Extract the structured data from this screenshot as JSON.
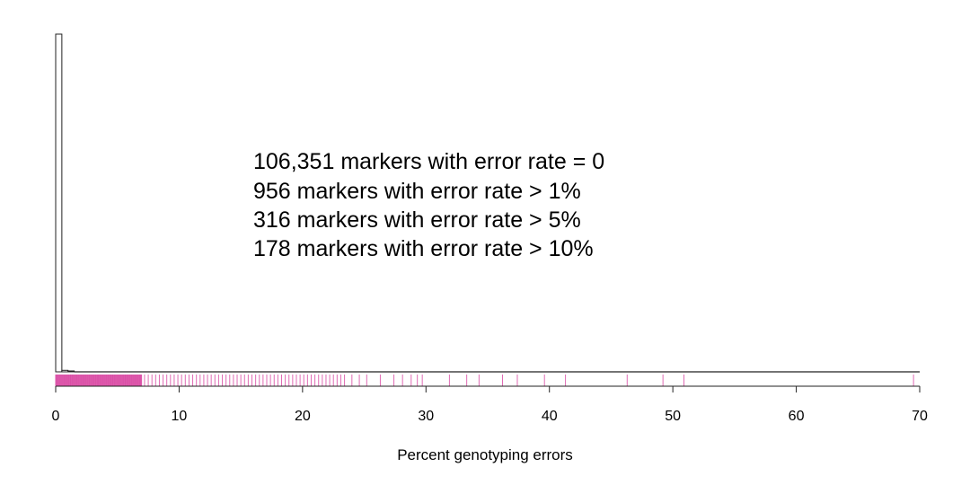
{
  "chart_data": {
    "type": "histogram",
    "xlabel": "Percent genotyping errors",
    "xlim": [
      0,
      70
    ],
    "x_ticks": [
      0,
      10,
      20,
      30,
      40,
      50,
      60,
      70
    ],
    "x_tick_labels": [
      "0",
      "10",
      "20",
      "30",
      "40",
      "50",
      "60",
      "70"
    ],
    "bin_width": 0.5,
    "histogram": {
      "bin_starts": [
        0.0,
        0.5,
        1.0
      ],
      "counts": [
        106351,
        480,
        150
      ],
      "note_tail_bins": "remaining bins to 69.5 have very small counts (near zero)"
    },
    "annotations": [
      "106,351 markers with error rate = 0",
      "956 markers with error rate > 1%",
      "316 markers with error rate > 5%",
      "178 markers with error rate > 10%"
    ],
    "rug": {
      "color": "#d63a9b",
      "dense_until": 7,
      "values": [
        7.2,
        7.5,
        7.8,
        8.1,
        8.4,
        8.7,
        9.0,
        9.3,
        9.6,
        9.9,
        10.2,
        10.5,
        10.8,
        11.1,
        11.4,
        11.7,
        12.0,
        12.3,
        12.6,
        12.9,
        13.2,
        13.5,
        13.8,
        14.1,
        14.4,
        14.7,
        15.0,
        15.3,
        15.6,
        15.9,
        16.2,
        16.5,
        16.8,
        17.1,
        17.4,
        17.7,
        18.0,
        18.3,
        18.6,
        18.9,
        19.2,
        19.5,
        19.8,
        20.1,
        20.4,
        20.7,
        21.0,
        21.3,
        21.6,
        21.9,
        22.2,
        22.5,
        22.8,
        23.1,
        23.4,
        24.0,
        24.6,
        25.2,
        26.3,
        27.4,
        28.1,
        28.8,
        29.3,
        29.7,
        31.9,
        33.3,
        34.3,
        36.2,
        37.4,
        39.6,
        41.3,
        46.3,
        49.2,
        50.9,
        69.5
      ]
    }
  }
}
